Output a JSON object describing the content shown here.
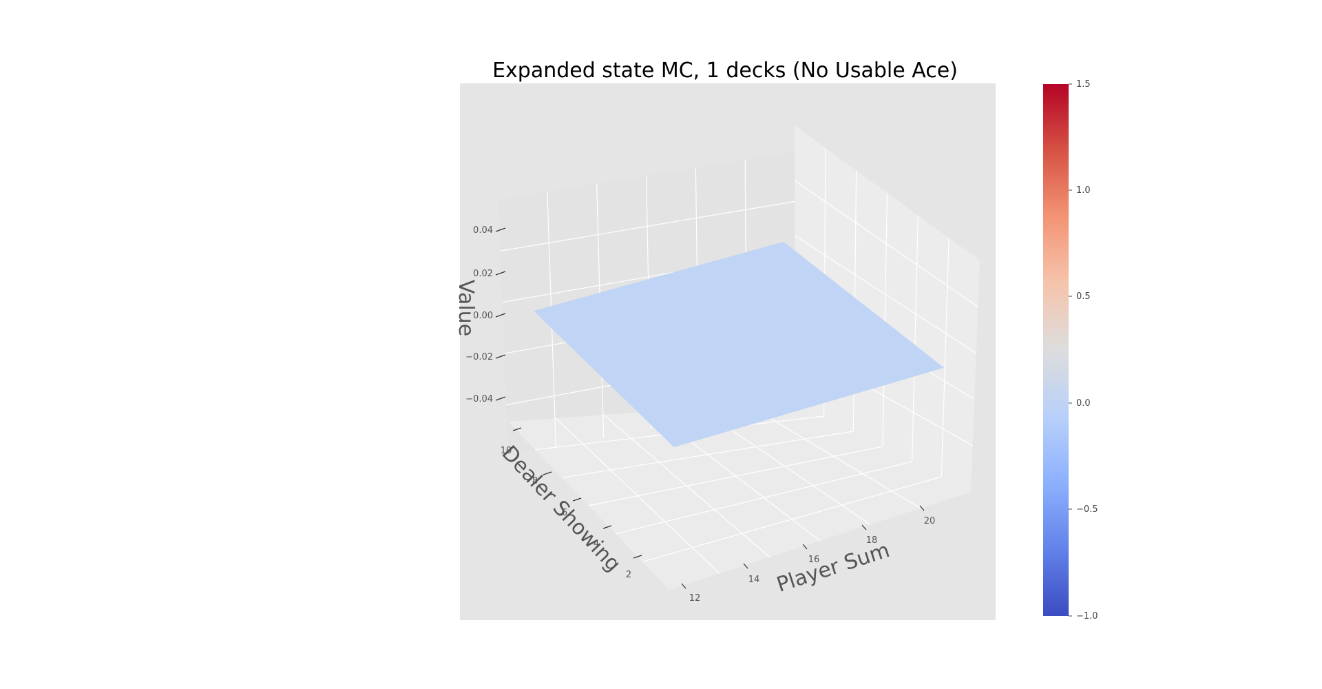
{
  "chart_data": {
    "type": "surface",
    "title": "Expanded state MC, 1 decks (No Usable Ace)",
    "xlabel": "Player Sum",
    "ylabel": "Dealer Showing",
    "zlabel": "Value",
    "x_ticks": [
      "12",
      "14",
      "16",
      "18",
      "20"
    ],
    "y_ticks": [
      "2",
      "4",
      "6",
      "8",
      "10"
    ],
    "z_ticks": [
      "−0.04",
      "−0.02",
      "0.00",
      "0.02",
      "0.04"
    ],
    "x_range": [
      12,
      21
    ],
    "y_range": [
      1,
      10
    ],
    "zlim": [
      -0.05,
      0.05
    ],
    "surface_value": 0.0,
    "colormap": "coolwarm",
    "colorbar": {
      "ticks": [
        "−1.0",
        "−0.5",
        "0.0",
        "0.5",
        "1.0",
        "1.5"
      ],
      "range": [
        -1.0,
        1.5
      ]
    },
    "grid": true,
    "colors": {
      "pane_background": "#e5e5e5",
      "surface": "#c0d4f5",
      "grid": "#ffffff",
      "cmap_low": "#3b4cc0",
      "cmap_mid": "#dddddd",
      "cmap_high": "#b40426"
    }
  }
}
